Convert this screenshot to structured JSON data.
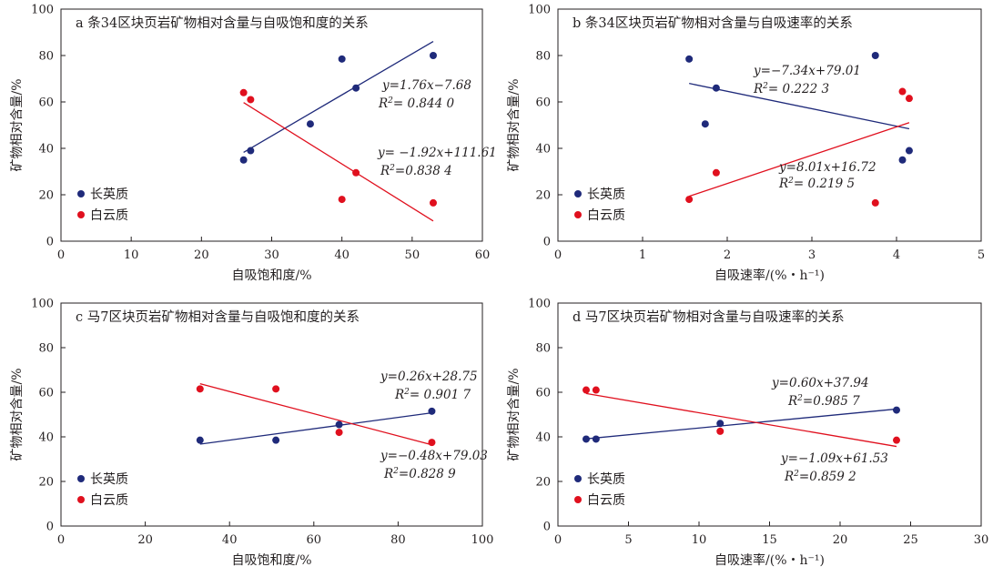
{
  "chart_data": [
    {
      "type": "scatter",
      "title": "a 条34区块页岩矿物相对含量与自吸饱和度的关系",
      "xlabel": "自吸饱和度/%",
      "ylabel": "矿物相对含量/%",
      "xlim": [
        0,
        60
      ],
      "ylim": [
        0,
        100
      ],
      "xticks": [
        0,
        10,
        20,
        30,
        40,
        50,
        60
      ],
      "yticks": [
        0,
        20,
        40,
        60,
        80,
        100
      ],
      "legend": [
        "长英质",
        "白云质"
      ],
      "legend_position": "bottom-left",
      "series": [
        {
          "name": "长英质",
          "color": "#1f2a7a",
          "points": [
            [
              26,
              35
            ],
            [
              27,
              39
            ],
            [
              35.5,
              50.5
            ],
            [
              40,
              78.5
            ],
            [
              42,
              66
            ],
            [
              53,
              80
            ]
          ],
          "fit": {
            "x": [
              26,
              53
            ],
            "equation": "y=1.76x−7.68",
            "r2": "R²= 0.844 0"
          }
        },
        {
          "name": "白云质",
          "color": "#e0101e",
          "points": [
            [
              26,
              64
            ],
            [
              27,
              61
            ],
            [
              40,
              18
            ],
            [
              42,
              29.5
            ],
            [
              53,
              16.5
            ]
          ],
          "fit": {
            "x": [
              26,
              53
            ],
            "equation": "y= −1.92x+111.61",
            "r2": "R²=0.838 4"
          }
        }
      ]
    },
    {
      "type": "scatter",
      "title": "b 条34区块页岩矿物相对含量与自吸速率的关系",
      "xlabel": "自吸速率/(%・h⁻¹)",
      "ylabel": "矿物相对含量/%",
      "xlim": [
        0,
        5
      ],
      "ylim": [
        0,
        100
      ],
      "xticks": [
        0,
        1,
        2,
        3,
        4,
        5
      ],
      "yticks": [
        0,
        20,
        40,
        60,
        80,
        100
      ],
      "legend": [
        "长英质",
        "白云质"
      ],
      "legend_position": "bottom-left",
      "series": [
        {
          "name": "长英质",
          "color": "#1f2a7a",
          "points": [
            [
              1.55,
              78.5
            ],
            [
              1.87,
              66
            ],
            [
              1.74,
              50.5
            ],
            [
              3.75,
              80
            ],
            [
              4.07,
              35
            ],
            [
              4.15,
              39
            ]
          ],
          "fit": {
            "x": [
              1.55,
              4.15
            ],
            "equation": "y=−7.34x+79.01",
            "r2": "R²= 0.222 3"
          }
        },
        {
          "name": "白云质",
          "color": "#e0101e",
          "points": [
            [
              1.55,
              18
            ],
            [
              1.87,
              29.5
            ],
            [
              3.75,
              16.5
            ],
            [
              4.07,
              64.5
            ],
            [
              4.15,
              61.5
            ]
          ],
          "fit": {
            "x": [
              1.55,
              4.15
            ],
            "equation": "y=8.01x+16.72",
            "r2": "R²= 0.219 5"
          }
        }
      ]
    },
    {
      "type": "scatter",
      "title": "c 马7区块页岩矿物相对含量与自吸饱和度的关系",
      "xlabel": "自吸饱和度/%",
      "ylabel": "矿物相对含量/%",
      "xlim": [
        0,
        100
      ],
      "ylim": [
        0,
        100
      ],
      "xticks": [
        0,
        20,
        40,
        60,
        80,
        100
      ],
      "yticks": [
        0,
        20,
        40,
        60,
        80,
        100
      ],
      "legend": [
        "长英质",
        "白云质"
      ],
      "legend_position": "bottom-left",
      "series": [
        {
          "name": "长英质",
          "color": "#1f2a7a",
          "points": [
            [
              33,
              38.5
            ],
            [
              51,
              38.5
            ],
            [
              66,
              45.5
            ],
            [
              88,
              51.5
            ]
          ],
          "fit": {
            "x": [
              33,
              88
            ],
            "equation": "y=0.26x+28.75",
            "r2": "R²= 0.901 7"
          }
        },
        {
          "name": "白云质",
          "color": "#e0101e",
          "points": [
            [
              33,
              61.5
            ],
            [
              51,
              61.5
            ],
            [
              66,
              42
            ],
            [
              88,
              37.5
            ]
          ],
          "fit": {
            "x": [
              33,
              88
            ],
            "equation": "y=−0.48x+79.03",
            "r2": "R²=0.828 9"
          }
        }
      ]
    },
    {
      "type": "scatter",
      "title": "d 马7区块页岩矿物相对含量与自吸速率的关系",
      "xlabel": "自吸速率/(%・h⁻¹)",
      "ylabel": "矿物相对含量/%",
      "xlim": [
        0,
        30
      ],
      "ylim": [
        0,
        100
      ],
      "xticks": [
        0,
        5,
        10,
        15,
        20,
        25,
        30
      ],
      "yticks": [
        0,
        20,
        40,
        60,
        80,
        100
      ],
      "legend": [
        "长英质",
        "白云质"
      ],
      "legend_position": "bottom-left",
      "series": [
        {
          "name": "长英质",
          "color": "#1f2a7a",
          "points": [
            [
              2,
              39
            ],
            [
              2.7,
              39
            ],
            [
              11.5,
              46
            ],
            [
              24,
              52
            ]
          ],
          "fit": {
            "x": [
              2,
              24
            ],
            "equation": "y=0.60x+37.94",
            "r2": "R²=0.985 7"
          }
        },
        {
          "name": "白云质",
          "color": "#e0101e",
          "points": [
            [
              2,
              61
            ],
            [
              2.7,
              61
            ],
            [
              11.5,
              42.5
            ],
            [
              24,
              38.5
            ]
          ],
          "fit": {
            "x": [
              2,
              24
            ],
            "equation": "y=−1.09x+61.53",
            "r2": "R²=0.859 2"
          }
        }
      ]
    }
  ]
}
